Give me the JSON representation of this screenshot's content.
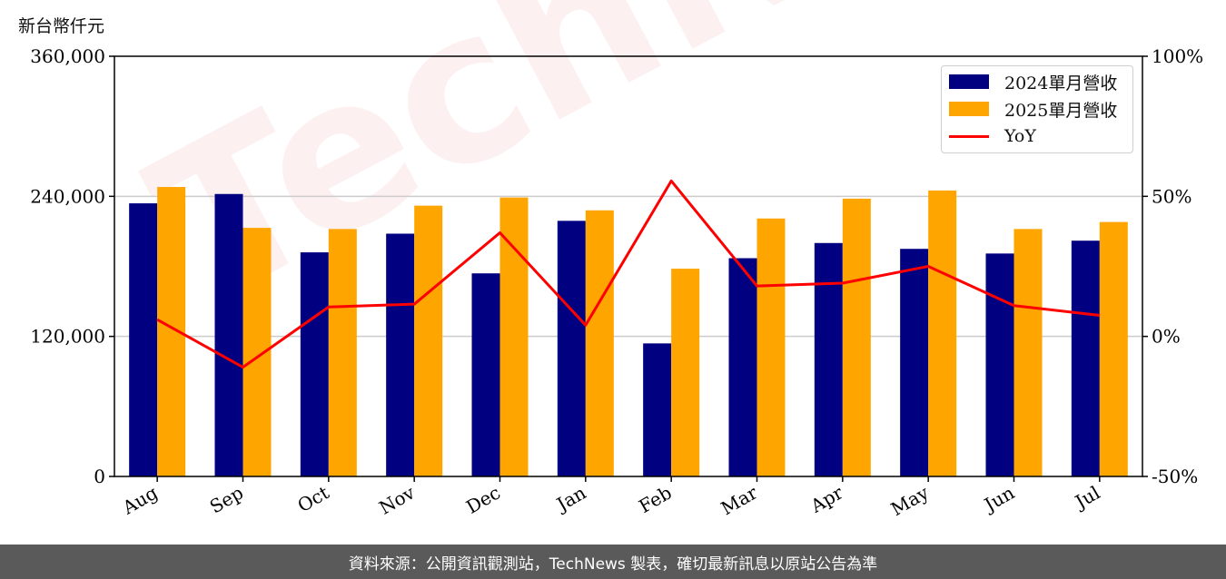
{
  "unit_label": "新台幣仟元",
  "footer_text": "資料來源：公開資訊觀測站，TechNews 製表，確切最新訊息以原站公告為準",
  "watermark_text": "TechNews",
  "colors": {
    "series_2024": "#000080",
    "series_2025": "#ffa500",
    "yoy_line": "#ff0000",
    "grid": "#cccccc",
    "footer_bg": "#5a5a5a"
  },
  "chart_data": {
    "type": "bar",
    "categories": [
      "Aug",
      "Sep",
      "Oct",
      "Nov",
      "Dec",
      "Jan",
      "Feb",
      "Mar",
      "Apr",
      "May",
      "Jun",
      "Jul"
    ],
    "series": [
      {
        "name": "2024單月營收",
        "type": "bar",
        "axis": "left",
        "values": [
          234000,
          242000,
          192000,
          208000,
          174000,
          219000,
          114000,
          187000,
          200000,
          195000,
          191000,
          202000
        ]
      },
      {
        "name": "2025單月營收",
        "type": "bar",
        "axis": "left",
        "values": [
          248000,
          213000,
          212000,
          232000,
          239000,
          228000,
          178000,
          221000,
          238000,
          245000,
          212000,
          218000
        ]
      },
      {
        "name": "YoY",
        "type": "line",
        "axis": "right",
        "unit": "%",
        "values": [
          6,
          -11,
          10.5,
          11.5,
          37,
          4,
          55.5,
          18,
          19,
          25,
          11,
          7.5
        ]
      }
    ],
    "left_axis": {
      "ylim": [
        0,
        360000
      ],
      "ticks": [
        0,
        120000,
        240000,
        360000
      ],
      "tick_labels": [
        "0",
        "120,000",
        "240,000",
        "360,000"
      ]
    },
    "right_axis": {
      "ylim": [
        -50,
        100
      ],
      "ticks": [
        -50,
        0,
        50,
        100
      ],
      "tick_labels": [
        "-50%",
        "0%",
        "50%",
        "100%"
      ]
    },
    "grid": "horizontal",
    "legend_placement": "top-right"
  }
}
